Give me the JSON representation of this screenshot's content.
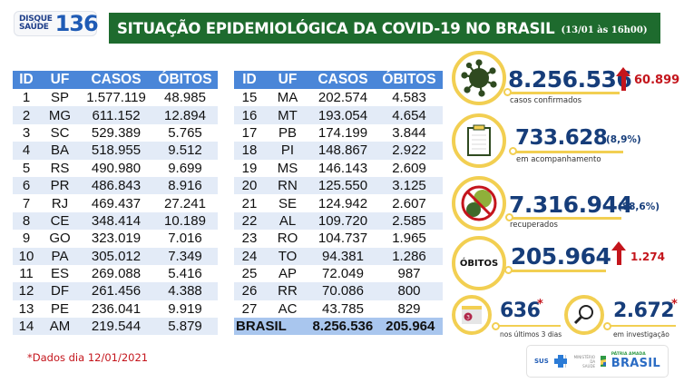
{
  "header": {
    "hotline": {
      "line1": "DISQUE",
      "line2": "SAÚDE",
      "number": "136"
    },
    "title": "SITUAÇÃO EPIDEMIOLÓGICA DA COVID-19 NO BRASIL",
    "timestamp": "(13/01 às 16h00)"
  },
  "table": {
    "columns": [
      "ID",
      "UF",
      "CASOS",
      "ÓBITOS"
    ],
    "left_rows": [
      {
        "id": "1",
        "uf": "SP",
        "casos": "1.577.119",
        "obitos": "48.985"
      },
      {
        "id": "2",
        "uf": "MG",
        "casos": "611.152",
        "obitos": "12.894"
      },
      {
        "id": "3",
        "uf": "SC",
        "casos": "529.389",
        "obitos": "5.765"
      },
      {
        "id": "4",
        "uf": "BA",
        "casos": "518.955",
        "obitos": "9.512"
      },
      {
        "id": "5",
        "uf": "RS",
        "casos": "490.980",
        "obitos": "9.699"
      },
      {
        "id": "6",
        "uf": "PR",
        "casos": "486.843",
        "obitos": "8.916"
      },
      {
        "id": "7",
        "uf": "RJ",
        "casos": "469.437",
        "obitos": "27.241"
      },
      {
        "id": "8",
        "uf": "CE",
        "casos": "348.414",
        "obitos": "10.189"
      },
      {
        "id": "9",
        "uf": "GO",
        "casos": "323.019",
        "obitos": "7.016"
      },
      {
        "id": "10",
        "uf": "PA",
        "casos": "305.012",
        "obitos": "7.349"
      },
      {
        "id": "11",
        "uf": "ES",
        "casos": "269.088",
        "obitos": "5.416"
      },
      {
        "id": "12",
        "uf": "DF",
        "casos": "261.456",
        "obitos": "4.388"
      },
      {
        "id": "13",
        "uf": "PE",
        "casos": "236.041",
        "obitos": "9.919"
      },
      {
        "id": "14",
        "uf": "AM",
        "casos": "219.544",
        "obitos": "5.879"
      }
    ],
    "right_rows": [
      {
        "id": "15",
        "uf": "MA",
        "casos": "202.574",
        "obitos": "4.583"
      },
      {
        "id": "16",
        "uf": "MT",
        "casos": "193.054",
        "obitos": "4.654"
      },
      {
        "id": "17",
        "uf": "PB",
        "casos": "174.199",
        "obitos": "3.844"
      },
      {
        "id": "18",
        "uf": "PI",
        "casos": "148.867",
        "obitos": "2.922"
      },
      {
        "id": "19",
        "uf": "MS",
        "casos": "146.143",
        "obitos": "2.609"
      },
      {
        "id": "20",
        "uf": "RN",
        "casos": "125.550",
        "obitos": "3.125"
      },
      {
        "id": "21",
        "uf": "SE",
        "casos": "124.942",
        "obitos": "2.607"
      },
      {
        "id": "22",
        "uf": "AL",
        "casos": "109.720",
        "obitos": "2.585"
      },
      {
        "id": "23",
        "uf": "RO",
        "casos": "104.737",
        "obitos": "1.965"
      },
      {
        "id": "24",
        "uf": "TO",
        "casos": "94.381",
        "obitos": "1.286"
      },
      {
        "id": "25",
        "uf": "AP",
        "casos": "72.049",
        "obitos": "987"
      },
      {
        "id": "26",
        "uf": "RR",
        "casos": "70.086",
        "obitos": "800"
      },
      {
        "id": "27",
        "uf": "AC",
        "casos": "43.785",
        "obitos": "829"
      }
    ],
    "total": {
      "label": "BRASIL",
      "casos": "8.256.536",
      "obitos": "205.964"
    }
  },
  "stats": {
    "confirmed": {
      "value": "8.256.536",
      "delta": "60.899",
      "label": "casos confirmados",
      "icon": "virus-icon"
    },
    "monitoring": {
      "value": "733.628",
      "pct": "(8,9%)",
      "label": "em acompanhamento",
      "icon": "clipboard-icon"
    },
    "recovered": {
      "value": "7.316.944",
      "pct": "(88,6%)",
      "label": "recuperados",
      "icon": "no-virus-icon"
    },
    "deaths": {
      "badge": "ÓBITOS",
      "value": "205.964",
      "delta": "1.274"
    },
    "last3days": {
      "value": "636",
      "mark": "*",
      "label": "nos últimos 3 dias",
      "icon": "calendar-icon",
      "calendar_day": "3"
    },
    "investigation": {
      "value": "2.672",
      "mark": "*",
      "label": "em investigação",
      "icon": "magnifier-icon"
    }
  },
  "footnote": "*Dados dia 12/01/2021",
  "footer_logos": {
    "sus": "SUS",
    "ministry_line1": "MINISTÉRIO DA",
    "ministry_line2": "SAÚDE",
    "patria_small": "PÁTRIA AMADA",
    "patria_big": "BRASIL"
  },
  "colors": {
    "header_green": "#1e6b2e",
    "table_header_blue": "#4a86d8",
    "table_alt_row": "#e3ebf7",
    "table_total_row": "#a9c6ee",
    "ring_yellow": "#f2cf52",
    "stat_navy": "#163d7a",
    "alert_red": "#c4151c"
  }
}
